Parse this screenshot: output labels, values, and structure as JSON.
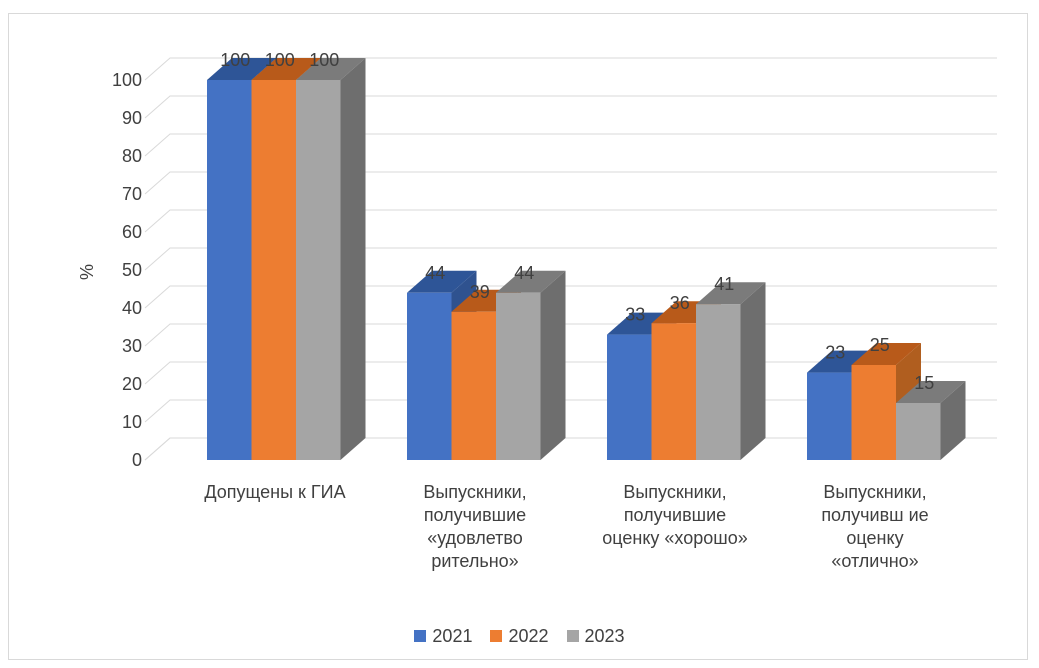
{
  "chart_data": {
    "type": "bar",
    "style": "3d-clustered-column",
    "ylabel": "%",
    "ylim": [
      0,
      100
    ],
    "yticks": [
      0,
      10,
      20,
      30,
      40,
      50,
      60,
      70,
      80,
      90,
      100
    ],
    "grid": true,
    "legend_position": "bottom",
    "categories": [
      "Допущены к ГИА",
      "Выпускники,\nполучившие\n«удовлетво\nрительно»",
      "Выпускники,\nполучившие\nоценку «хорошо»",
      "Выпускники,\nполучивш ие\nоценку\n«отлично»"
    ],
    "series": [
      {
        "name": "2021",
        "values": [
          100,
          44,
          33,
          23
        ],
        "color": "#4472C4",
        "top": "#2E5597",
        "side": "#2F528F"
      },
      {
        "name": "2022",
        "values": [
          100,
          39,
          36,
          25
        ],
        "color": "#ED7D31",
        "top": "#B85A1A",
        "side": "#B05E1F"
      },
      {
        "name": "2023",
        "values": [
          100,
          44,
          41,
          15
        ],
        "color": "#A5A5A5",
        "top": "#7B7B7B",
        "side": "#6E6E6E"
      }
    ]
  }
}
